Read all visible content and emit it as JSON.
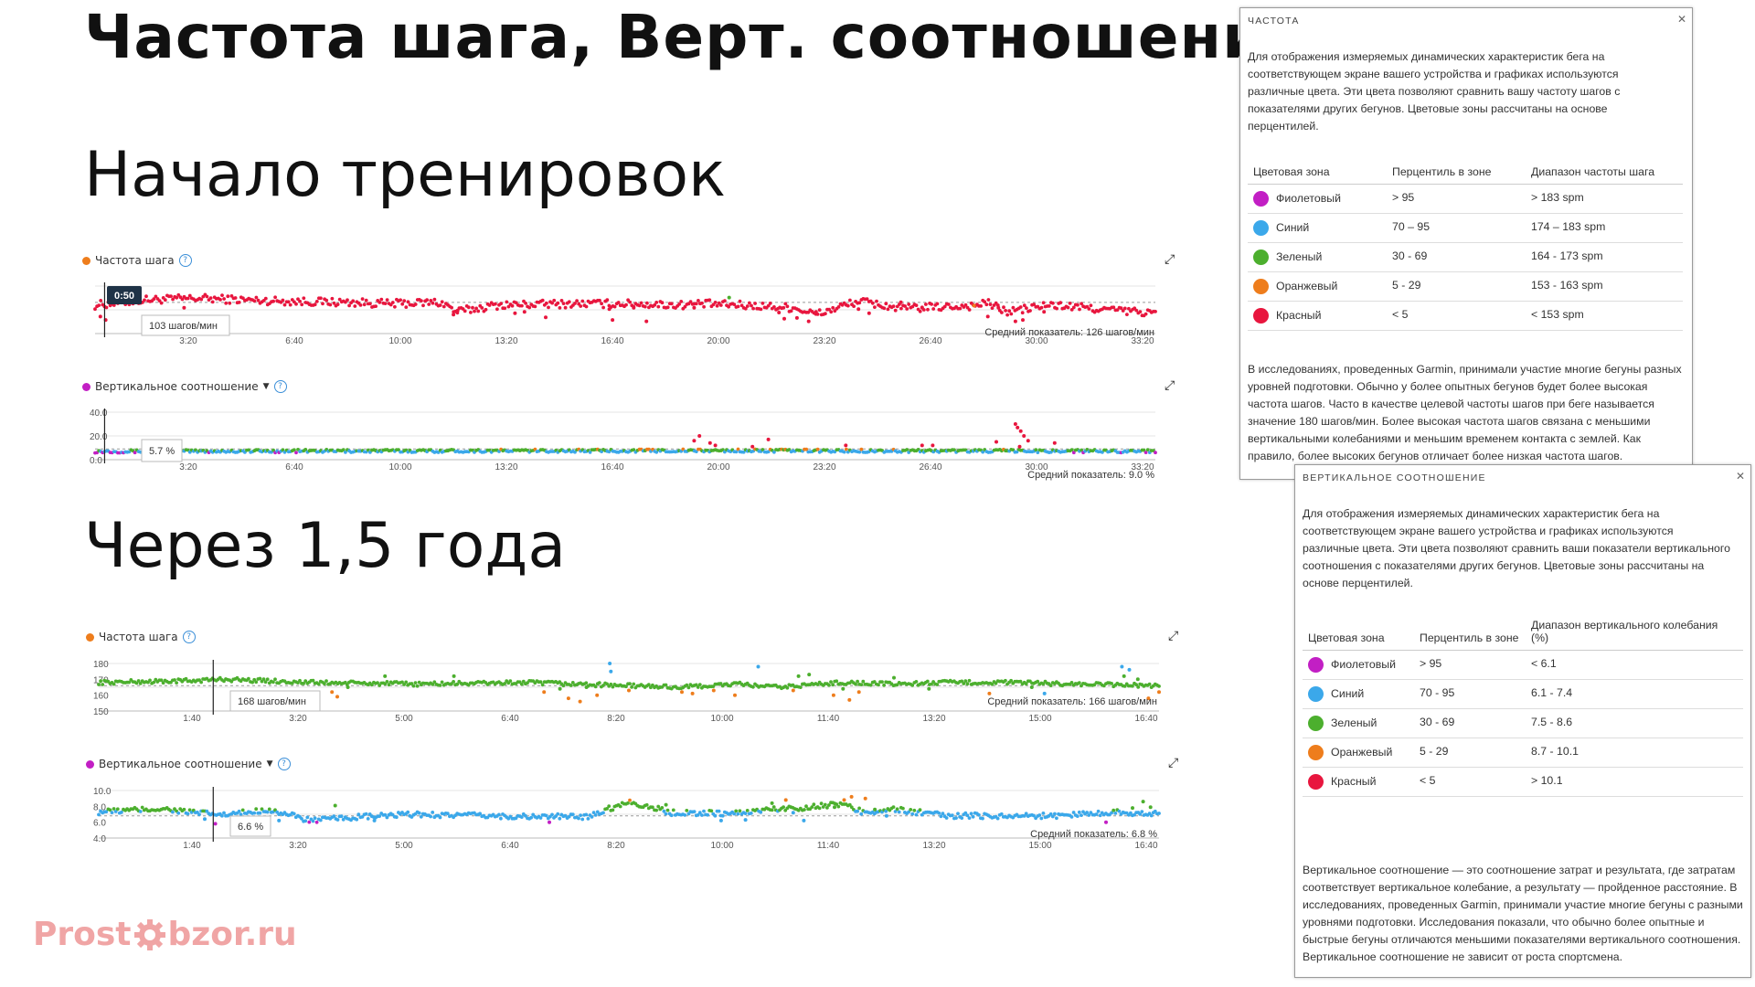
{
  "page": {
    "title": "Частота шага, Верт. соотношение",
    "section1": "Начало тренировок",
    "section2": "Через 1,5 года"
  },
  "colors": {
    "purple": "#c21fc4",
    "blue": "#3ba8ea",
    "green": "#4caf2e",
    "orange": "#ee7d1c",
    "red": "#e8163e"
  },
  "chart_data": [
    {
      "id": "c1",
      "type": "scatter",
      "title": "Частота шага",
      "title_dot_color": "#ee7d1c",
      "x_ticks": [
        "3:20",
        "6:40",
        "10:00",
        "13:20",
        "16:40",
        "20:00",
        "23:20",
        "26:40",
        "30:00",
        "33:20"
      ],
      "y_ticks": [],
      "ylim": [
        80,
        150
      ],
      "avg_value": 126,
      "avg_label": "Средний показатель: 126 шагов/мин",
      "tooltip_time": "0:50",
      "tooltip_value": "103 шагов/мин",
      "cursor_x": 0.9,
      "baseline": 128,
      "spread": 6,
      "zones": [
        {
          "min": 183,
          "c": "#c21fc4"
        },
        {
          "min": 174,
          "c": "#3ba8ea"
        },
        {
          "min": 164,
          "c": "#4caf2e"
        },
        {
          "min": 153,
          "c": "#ee7d1c"
        },
        {
          "min": 0,
          "c": "#e8163e"
        }
      ],
      "profile": [
        [
          0,
          122
        ],
        [
          5,
          130
        ],
        [
          10,
          132
        ],
        [
          15,
          129
        ],
        [
          20,
          127
        ],
        [
          24,
          126
        ],
        [
          28,
          124
        ],
        [
          32,
          126
        ],
        [
          33,
          124
        ],
        [
          34,
          112
        ],
        [
          38,
          122
        ],
        [
          45,
          124
        ],
        [
          50,
          124
        ],
        [
          55,
          122
        ],
        [
          57,
          124
        ],
        [
          62,
          121
        ],
        [
          66,
          118
        ],
        [
          68,
          108
        ],
        [
          72,
          128
        ],
        [
          76,
          117
        ],
        [
          83,
          121
        ],
        [
          84,
          126
        ],
        [
          86,
          112
        ],
        [
          90,
          122
        ],
        [
          100,
          110
        ]
      ],
      "outliers": [
        [
          0.5,
          105
        ],
        [
          1,
          100
        ],
        [
          8.4,
          118
        ],
        [
          33.8,
          108
        ],
        [
          34.2,
          114
        ],
        [
          39.6,
          110
        ],
        [
          40.5,
          112
        ],
        [
          42.5,
          104
        ],
        [
          48.8,
          100
        ],
        [
          48.5,
          116
        ],
        [
          50.8,
          118
        ],
        [
          52,
          98
        ],
        [
          56.5,
          118
        ],
        [
          64.5,
          111
        ],
        [
          65,
          102
        ],
        [
          66.2,
          103
        ],
        [
          67.3,
          98
        ],
        [
          68,
          112
        ],
        [
          72,
          116
        ],
        [
          73,
          110
        ],
        [
          76,
          126
        ],
        [
          78,
          118
        ],
        [
          84.2,
          105
        ],
        [
          85.2,
          118
        ],
        [
          86.8,
          98
        ],
        [
          87.5,
          100
        ],
        [
          89.5,
          112
        ]
      ],
      "extra_colored": [
        [
          59.8,
          133,
          "#4caf2e"
        ],
        [
          82.9,
          121,
          "#ee7d1c"
        ]
      ]
    },
    {
      "id": "c2",
      "type": "scatter",
      "title": "Вертикальное соотношение",
      "title_dot_color": "#c21fc4",
      "has_caret": true,
      "x_ticks": [
        "3:20",
        "6:40",
        "10:00",
        "13:20",
        "16:40",
        "20:00",
        "23:20",
        "26:40",
        "30:00",
        "33:20"
      ],
      "y_ticks": [
        "40.0",
        "20.0",
        "0.0"
      ],
      "ylim": [
        0,
        40
      ],
      "avg_value": 9.0,
      "avg_label": "Средний показатель: 9.0 %",
      "tooltip_value": "5.7 %",
      "cursor_x": 0.9,
      "baseline": 7.3,
      "spread": 1.3,
      "zones": [
        {
          "max": 6.1,
          "c": "#c21fc4"
        },
        {
          "max": 7.4,
          "c": "#3ba8ea"
        },
        {
          "max": 8.6,
          "c": "#4caf2e"
        },
        {
          "max": 10.1,
          "c": "#ee7d1c"
        },
        {
          "max": 999,
          "c": "#e8163e"
        }
      ],
      "profile": [
        [
          0,
          7
        ],
        [
          30,
          7.4
        ],
        [
          60,
          7.6
        ],
        [
          100,
          7.2
        ]
      ],
      "outliers": [
        [
          57,
          20
        ],
        [
          56.5,
          16
        ],
        [
          58,
          14
        ],
        [
          58.5,
          12
        ],
        [
          62,
          11
        ],
        [
          63.5,
          17
        ],
        [
          70.8,
          12
        ],
        [
          78,
          12
        ],
        [
          79,
          12
        ],
        [
          85,
          15
        ],
        [
          86.8,
          30
        ],
        [
          87,
          27
        ],
        [
          87.3,
          24
        ],
        [
          87.6,
          20
        ],
        [
          88,
          16
        ],
        [
          87.2,
          11
        ],
        [
          90.5,
          14
        ]
      ],
      "extra_colored": []
    },
    {
      "id": "c3",
      "type": "scatter",
      "title": "Частота шага",
      "title_dot_color": "#ee7d1c",
      "x_ticks": [
        "1:40",
        "3:20",
        "5:00",
        "6:40",
        "8:20",
        "10:00",
        "11:40",
        "13:20",
        "15:00",
        "16:40"
      ],
      "y_ticks": [
        "180",
        "170",
        "160",
        "150"
      ],
      "ylim": [
        150,
        180
      ],
      "avg_value": 166,
      "avg_label": "Средний показатель: 166 шагов/мин",
      "tooltip_value": "168 шагов/мин",
      "cursor_x": 10.8,
      "baseline": 168.5,
      "spread": 1.3,
      "zones": [
        {
          "min": 183,
          "c": "#c21fc4"
        },
        {
          "min": 174,
          "c": "#3ba8ea"
        },
        {
          "min": 164,
          "c": "#4caf2e"
        },
        {
          "min": 153,
          "c": "#ee7d1c"
        },
        {
          "min": 0,
          "c": "#e8163e"
        }
      ],
      "profile": [
        [
          0,
          168
        ],
        [
          8,
          169
        ],
        [
          12,
          170
        ],
        [
          20,
          168
        ],
        [
          30,
          167
        ],
        [
          40,
          168
        ],
        [
          45,
          167
        ],
        [
          50,
          166
        ],
        [
          55,
          165
        ],
        [
          60,
          167
        ],
        [
          64,
          165
        ],
        [
          70,
          168
        ],
        [
          75,
          167
        ],
        [
          80,
          168
        ],
        [
          86,
          168
        ],
        [
          92,
          167
        ],
        [
          100,
          166
        ]
      ],
      "outliers": [
        [
          22,
          162
        ],
        [
          22.5,
          159
        ],
        [
          23.5,
          165
        ],
        [
          27,
          172
        ],
        [
          33.5,
          172
        ],
        [
          42,
          162
        ],
        [
          43.5,
          164
        ],
        [
          44.3,
          158
        ],
        [
          45.4,
          156
        ],
        [
          46,
          165
        ],
        [
          47,
          160
        ],
        [
          48.3,
          175
        ],
        [
          50,
          163
        ],
        [
          55,
          162
        ],
        [
          56,
          161
        ],
        [
          58,
          163
        ],
        [
          60,
          160
        ],
        [
          65.5,
          163
        ],
        [
          66,
          172
        ],
        [
          67,
          173
        ],
        [
          69.3,
          160
        ],
        [
          70.2,
          164
        ],
        [
          70.8,
          157
        ],
        [
          71.7,
          162
        ],
        [
          75,
          171
        ],
        [
          78.3,
          164
        ],
        [
          84,
          161
        ],
        [
          88,
          165
        ],
        [
          96.7,
          172
        ],
        [
          97.2,
          176
        ],
        [
          98,
          170
        ],
        [
          99,
          158
        ],
        [
          100,
          162
        ]
      ],
      "extra_colored": [
        [
          48.2,
          180,
          "#3ba8ea"
        ],
        [
          62.2,
          178,
          "#3ba8ea"
        ],
        [
          89.2,
          161,
          "#3ba8ea"
        ],
        [
          96.5,
          178,
          "#3ba8ea"
        ]
      ]
    },
    {
      "id": "c4",
      "type": "scatter",
      "title": "Вертикальное соотношение",
      "title_dot_color": "#c21fc4",
      "has_caret": true,
      "x_ticks": [
        "1:40",
        "3:20",
        "5:00",
        "6:40",
        "8:20",
        "10:00",
        "11:40",
        "13:20",
        "15:00",
        "16:40"
      ],
      "y_ticks": [
        "10.0",
        "8.0",
        "6.0",
        "4.0"
      ],
      "ylim": [
        4,
        10
      ],
      "avg_value": 6.8,
      "avg_label": "Средний показатель: 6.8 %",
      "tooltip_value": "6.6 %",
      "cursor_x": 10.8,
      "baseline": 7.0,
      "spread": 0.35,
      "zones": [
        {
          "max": 6.1,
          "c": "#c21fc4"
        },
        {
          "max": 7.4,
          "c": "#3ba8ea"
        },
        {
          "max": 8.6,
          "c": "#4caf2e"
        },
        {
          "max": 10.1,
          "c": "#ee7d1c"
        },
        {
          "max": 999,
          "c": "#e8163e"
        }
      ],
      "profile": [
        [
          0,
          7.3
        ],
        [
          6,
          7.7
        ],
        [
          9,
          7.2
        ],
        [
          12,
          6.9
        ],
        [
          16,
          7.6
        ],
        [
          20,
          6.2
        ],
        [
          24,
          6.6
        ],
        [
          30,
          7.0
        ],
        [
          40,
          6.7
        ],
        [
          46,
          6.7
        ],
        [
          50,
          8.6
        ],
        [
          54,
          7.2
        ],
        [
          60,
          7.1
        ],
        [
          63,
          7.6
        ],
        [
          66,
          7.8
        ],
        [
          70,
          8.3
        ],
        [
          72,
          7.3
        ],
        [
          75,
          7.6
        ],
        [
          80,
          6.8
        ],
        [
          90,
          6.8
        ],
        [
          96,
          7.3
        ],
        [
          100,
          7.0
        ]
      ],
      "outliers": [
        [
          10,
          6.4
        ],
        [
          11,
          5.8
        ],
        [
          17,
          6.2
        ],
        [
          22.3,
          8.1
        ],
        [
          26,
          6.2
        ],
        [
          42.5,
          6.0
        ],
        [
          53.5,
          8.2
        ],
        [
          58.7,
          6.2
        ],
        [
          61,
          6.3
        ],
        [
          63.5,
          8.4
        ],
        [
          64.8,
          8.8
        ],
        [
          65.5,
          7.2
        ],
        [
          66.5,
          6.2
        ],
        [
          69.4,
          7.9
        ],
        [
          70.3,
          8.8
        ],
        [
          71,
          9.2
        ],
        [
          72.3,
          9.0
        ],
        [
          73.2,
          7.6
        ],
        [
          74.3,
          6.8
        ],
        [
          95,
          6.0
        ],
        [
          97.5,
          7.8
        ],
        [
          98.5,
          8.6
        ],
        [
          99.2,
          7.9
        ]
      ],
      "extra_colored": []
    }
  ],
  "panel1": {
    "title": "ЧАСТОТА",
    "intro": "Для отображения измеряемых динамических характеристик бега на соответствующем экране вашего устройства и графиках используются различные цвета. Эти цвета позволяют сравнить вашу частоту шагов с показателями других бегунов. Цветовые зоны рассчитаны на основе перцентилей.",
    "col1": "Цветовая зона",
    "col2": "Перцентиль в зоне",
    "col3": "Диапазон частоты шага",
    "rows": [
      {
        "color": "#c21fc4",
        "zone": "Фиолетовый",
        "pct": "> 95",
        "range": "> 183 spm"
      },
      {
        "color": "#3ba8ea",
        "zone": "Синий",
        "pct": "70 – 95",
        "range": "174 – 183 spm"
      },
      {
        "color": "#4caf2e",
        "zone": "Зеленый",
        "pct": "30 - 69",
        "range": "164 - 173 spm"
      },
      {
        "color": "#ee7d1c",
        "zone": "Оранжевый",
        "pct": "5 - 29",
        "range": "153 - 163 spm"
      },
      {
        "color": "#e8163e",
        "zone": "Красный",
        "pct": "< 5",
        "range": "< 153 spm"
      }
    ],
    "outro": "В исследованиях, проведенных Garmin, принимали участие многие бегуны разных уровней подготовки. Обычно у более опытных бегунов будет более высокая частота шагов. Часто в качестве целевой частоты шагов при беге называется значение 180 шагов/мин. Более высокая частота шагов связана с меньшими вертикальными колебаниями и меньшим временем контакта с землей. Как правило, более высоких бегунов отличает более низкая частота шагов."
  },
  "panel2": {
    "title": "ВЕРТИКАЛЬНОЕ СООТНОШЕНИЕ",
    "intro": "Для отображения измеряемых динамических характеристик бега на соответствующем экране вашего устройства и графиках используются различные цвета. Эти цвета позволяют сравнить ваши показатели вертикального соотношения с показателями других бегунов. Цветовые зоны рассчитаны на основе перцентилей.",
    "col1": "Цветовая зона",
    "col2": "Перцентиль в зоне",
    "col3": "Диапазон вертикального колебания (%)",
    "rows": [
      {
        "color": "#c21fc4",
        "zone": "Фиолетовый",
        "pct": "> 95",
        "range": "< 6.1"
      },
      {
        "color": "#3ba8ea",
        "zone": "Синий",
        "pct": "70 - 95",
        "range": "6.1 - 7.4"
      },
      {
        "color": "#4caf2e",
        "zone": "Зеленый",
        "pct": "30 - 69",
        "range": "7.5 - 8.6"
      },
      {
        "color": "#ee7d1c",
        "zone": "Оранжевый",
        "pct": "5 - 29",
        "range": "8.7 - 10.1"
      },
      {
        "color": "#e8163e",
        "zone": "Красный",
        "pct": "< 5",
        "range": "> 10.1"
      }
    ],
    "outro": "Вертикальное соотношение — это соотношение затрат и результата, где затратам соответствует вертикальное колебание, а результату — пройденное расстояние. В исследованиях, проведенных Garmin, принимали участие многие бегуны с разными уровнями подготовки. Исследования показали, что обычно более опытные и быстрые бегуны отличаются меньшими показателями вертикального соотношения. Вертикальное соотношение не зависит от роста спортсмена."
  },
  "logo": {
    "left": "Prost",
    "right": "bzor.ru"
  }
}
